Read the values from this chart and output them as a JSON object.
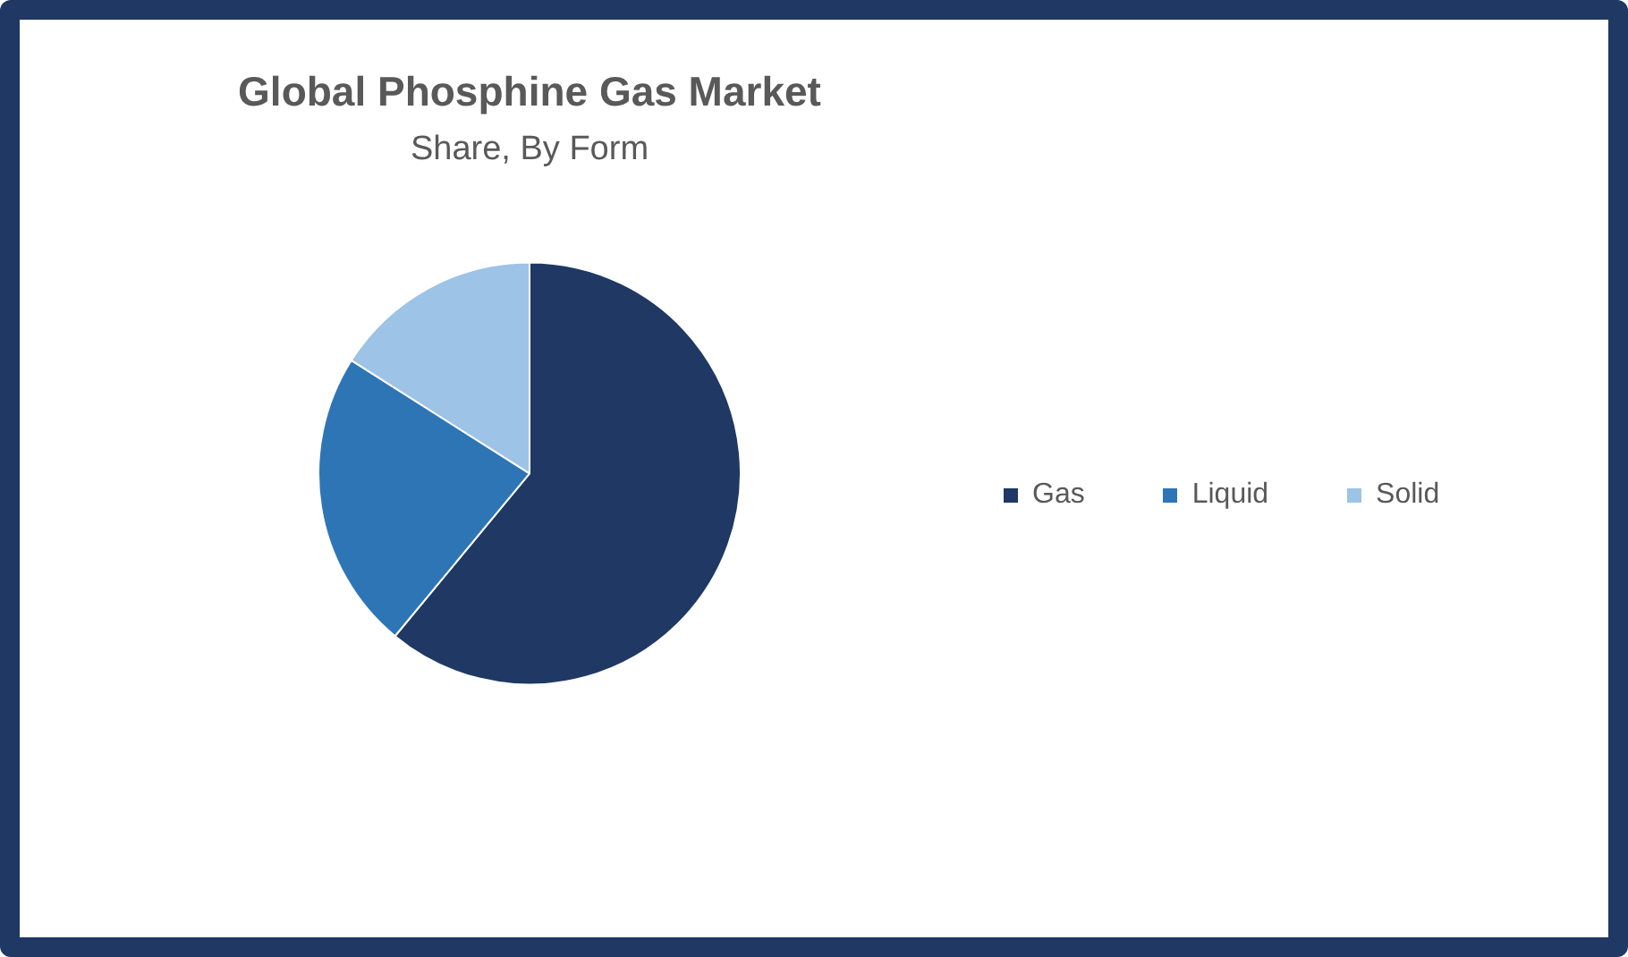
{
  "chart_data": {
    "type": "pie",
    "title": "Global Phosphine Gas Market",
    "subtitle": "Share, By Form",
    "categories": [
      "Gas",
      "Liquid",
      "Solid"
    ],
    "values": [
      61,
      23,
      16
    ],
    "colors": [
      "#1f3864",
      "#2e75b6",
      "#9dc3e6"
    ],
    "legend": "right"
  }
}
